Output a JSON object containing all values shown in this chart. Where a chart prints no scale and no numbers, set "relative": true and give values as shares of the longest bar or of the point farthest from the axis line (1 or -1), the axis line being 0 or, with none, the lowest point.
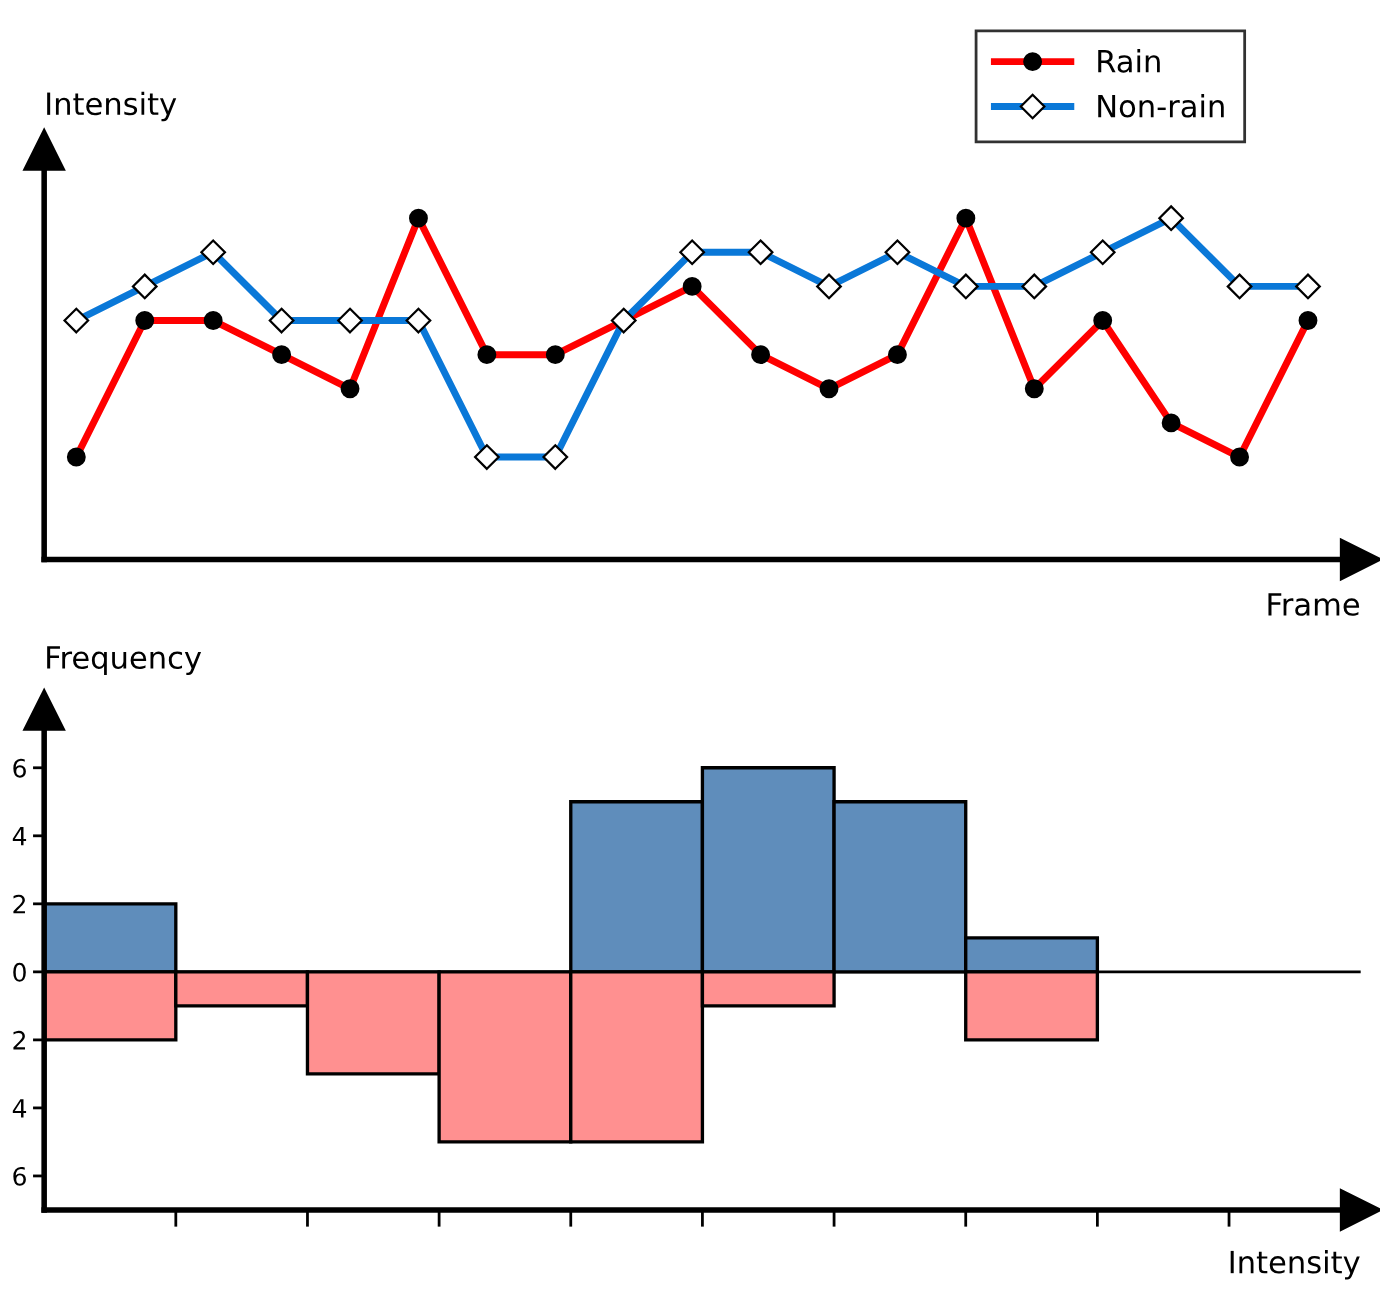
{
  "chart_data": [
    {
      "type": "line",
      "relative": true,
      "ylabel": "Intensity",
      "xlabel": "Frame",
      "categories": [
        null,
        null,
        null,
        null,
        null,
        null,
        null,
        null,
        null,
        null,
        null,
        null,
        null,
        null,
        null,
        null,
        null,
        null,
        null
      ],
      "tick_labels": false,
      "grid": false,
      "legend": "top right",
      "series": [
        {
          "name": "Rain",
          "color": "#ff0000",
          "marker": "circle",
          "values": [
            0.3,
            0.7,
            0.7,
            0.6,
            0.5,
            1.0,
            0.6,
            0.6,
            0.7,
            0.8,
            0.6,
            0.5,
            0.6,
            1.0,
            0.5,
            0.7,
            0.4,
            0.3,
            0.7
          ]
        },
        {
          "name": "Non-rain",
          "color": "#0a78d8",
          "marker": "diamond",
          "values": [
            0.7,
            0.8,
            0.9,
            0.7,
            0.7,
            0.7,
            0.3,
            0.3,
            0.7,
            0.9,
            0.9,
            0.8,
            0.9,
            0.8,
            0.8,
            0.9,
            1.0,
            0.8,
            0.8
          ]
        }
      ]
    },
    {
      "type": "bar",
      "ylabel": "Frequency",
      "xlabel": "Intensity",
      "categories": [
        null,
        null,
        null,
        null,
        null,
        null,
        null,
        null,
        null,
        null
      ],
      "tick_labels": "y",
      "grid": false,
      "ylim": [
        -7,
        7.7
      ],
      "yticks": [
        6,
        4,
        2,
        0,
        {
          "value": -2,
          "label": "2"
        },
        {
          "value": -4,
          "label": "4"
        },
        {
          "value": -6,
          "label": "6"
        }
      ],
      "ref_lines": [
        {
          "axis": "y",
          "value": 0,
          "color": "#000000"
        }
      ],
      "series": [
        {
          "color": "#5f8dbb",
          "values": [
            2,
            0,
            0,
            0,
            5,
            6,
            5,
            1,
            null,
            null
          ]
        },
        {
          "color": "#ff9090",
          "values": [
            -2,
            -1,
            -3,
            -5,
            -5,
            -1,
            0,
            -2,
            null,
            null
          ]
        }
      ]
    }
  ]
}
